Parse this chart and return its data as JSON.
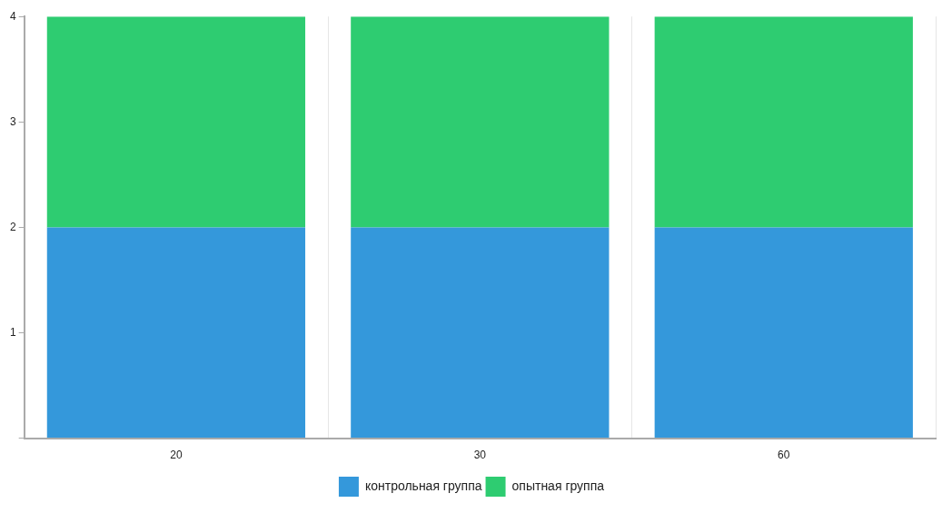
{
  "chart_data": {
    "type": "bar",
    "stacked": true,
    "categories": [
      "20",
      "30",
      "60"
    ],
    "series": [
      {
        "name": "контрольная группа",
        "color": "#3498db",
        "values": [
          2,
          2,
          2
        ]
      },
      {
        "name": "опытная группа",
        "color": "#2ecc71",
        "values": [
          2,
          2,
          2
        ]
      }
    ],
    "ylim": [
      0,
      4
    ],
    "yticks": [
      {
        "value": 0,
        "label": null
      },
      1,
      2,
      3,
      4
    ],
    "grid": "x",
    "legend": "bottom"
  }
}
